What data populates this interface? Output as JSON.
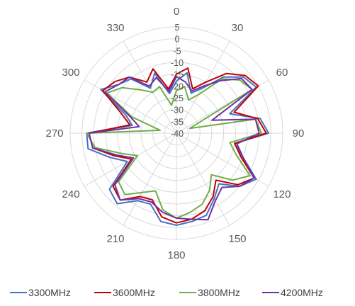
{
  "chart_data": {
    "type": "radar",
    "title": "",
    "angle_labels": [
      "0",
      "30",
      "60",
      "90",
      "120",
      "150",
      "180",
      "210",
      "240",
      "270",
      "300",
      "330"
    ],
    "radial_ticks": [
      5,
      0,
      -5,
      -10,
      -15,
      -20,
      -25,
      -30,
      -35,
      -40
    ],
    "rlim": [
      -40,
      5
    ],
    "grid": true,
    "legend_position": "bottom",
    "series": [
      {
        "name": "3300MHz",
        "color": "#4472c4",
        "angles": [
          0,
          10,
          20,
          30,
          40,
          50,
          60,
          70,
          80,
          90,
          100,
          110,
          120,
          130,
          140,
          150,
          160,
          170,
          180,
          190,
          200,
          210,
          220,
          230,
          240,
          250,
          260,
          270,
          280,
          290,
          300,
          310,
          320,
          330,
          340,
          350
        ],
        "values": [
          -18,
          -14,
          -22,
          -18,
          -9,
          -3,
          -1,
          -16,
          -4,
          -1,
          -15,
          -10,
          -1,
          -5,
          -12,
          -8,
          -3,
          -2,
          -1,
          -2,
          -8,
          -7,
          -1,
          -3,
          -16,
          -10,
          -2,
          -2,
          -21,
          -17,
          -3,
          -8,
          -10,
          -18,
          -13,
          -23
        ]
      },
      {
        "name": "3600MHz",
        "color": "#c00000",
        "angles": [
          0,
          10,
          20,
          30,
          40,
          50,
          60,
          70,
          80,
          90,
          100,
          110,
          120,
          130,
          140,
          150,
          160,
          170,
          180,
          190,
          200,
          210,
          220,
          230,
          240,
          250,
          260,
          270,
          280,
          290,
          300,
          310,
          320,
          330,
          340,
          350
        ],
        "values": [
          -15,
          -12,
          -20,
          -15,
          -7,
          -2,
          0,
          -14,
          -5,
          -2,
          -15,
          -11,
          -2,
          -6,
          -14,
          -9,
          -5,
          -3,
          -2,
          -4,
          -10,
          -9,
          -3,
          -5,
          -18,
          -12,
          -4,
          -3,
          -20,
          -15,
          -4,
          -6,
          -9,
          -15,
          -11,
          -21
        ]
      },
      {
        "name": "3800MHz",
        "color": "#70ad47",
        "angles": [
          0,
          10,
          20,
          30,
          40,
          50,
          60,
          70,
          80,
          90,
          100,
          110,
          120,
          130,
          140,
          150,
          160,
          170,
          180,
          190,
          200,
          210,
          220,
          230,
          240,
          250,
          260,
          270,
          280,
          290,
          300,
          310,
          320,
          330,
          340,
          350
        ],
        "values": [
          -22,
          -20,
          -25,
          -21,
          -10,
          -5,
          -3,
          -34,
          -6,
          -4,
          -17,
          -13,
          -4,
          -9,
          -17,
          -12,
          -8,
          -6,
          -4,
          -7,
          -14,
          -11,
          -6,
          -8,
          -21,
          -15,
          -5,
          -2,
          -33,
          -20,
          -6,
          -10,
          -16,
          -20,
          -19,
          -28
        ]
      },
      {
        "name": "4200MHz",
        "color": "#7030a0",
        "angles": [
          0,
          10,
          20,
          30,
          40,
          50,
          60,
          70,
          80,
          90,
          100,
          110,
          120,
          130,
          140,
          150,
          160,
          170,
          180,
          190,
          200,
          210,
          220,
          230,
          240,
          250,
          260,
          270,
          280,
          290,
          300,
          310,
          320,
          330,
          340,
          350
        ],
        "values": [
          -16,
          -18,
          -21,
          -17,
          -11,
          -4,
          -3,
          -24,
          -6,
          -5,
          -14,
          -10,
          -2,
          -5,
          -10,
          -7,
          -1,
          -3,
          -4,
          -6,
          -9,
          -8,
          -3,
          -6,
          -19,
          -13,
          -4,
          -3,
          -24,
          -19,
          -5,
          -8,
          -9,
          -17,
          -15,
          -22
        ]
      }
    ]
  }
}
